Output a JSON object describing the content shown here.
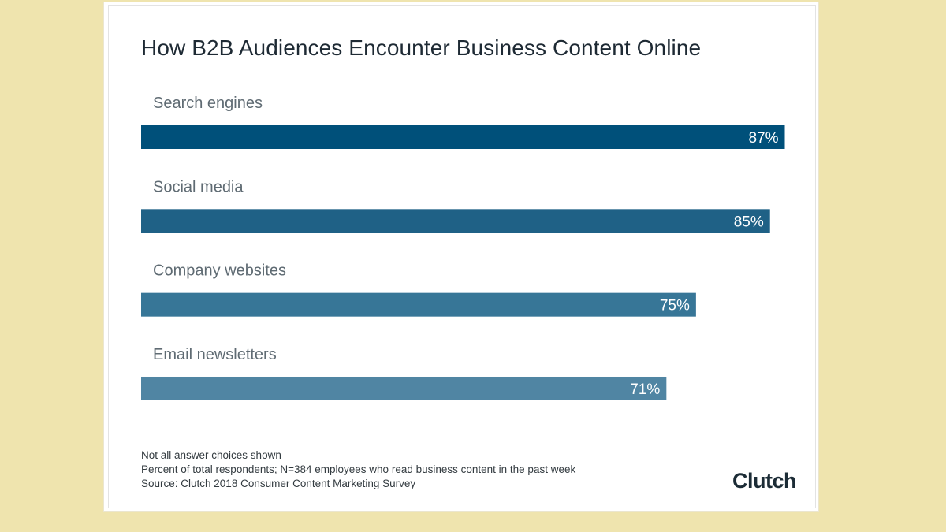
{
  "chart_data": {
    "type": "bar",
    "orientation": "horizontal",
    "title": "How B2B Audiences Encounter Business Content Online",
    "categories": [
      "Search engines",
      "Social media",
      "Company websites",
      "Email newsletters"
    ],
    "values": [
      87,
      85,
      75,
      71
    ],
    "value_labels": [
      "87%",
      "85%",
      "75%",
      "71%"
    ],
    "unit": "%",
    "xlim": [
      0,
      100
    ],
    "colors": [
      "#00507a",
      "#1f6186",
      "#377697",
      "#5085a3"
    ],
    "grid": false,
    "legend": "none"
  },
  "footnotes": [
    "Not all answer choices shown",
    "Percent of total respondents; N=384 employees who read business content in the past week",
    "Source: Clutch 2018 Consumer Content Marketing Survey"
  ],
  "brand": {
    "logo_text": "Clutch",
    "accent_color": "#e2553e"
  }
}
